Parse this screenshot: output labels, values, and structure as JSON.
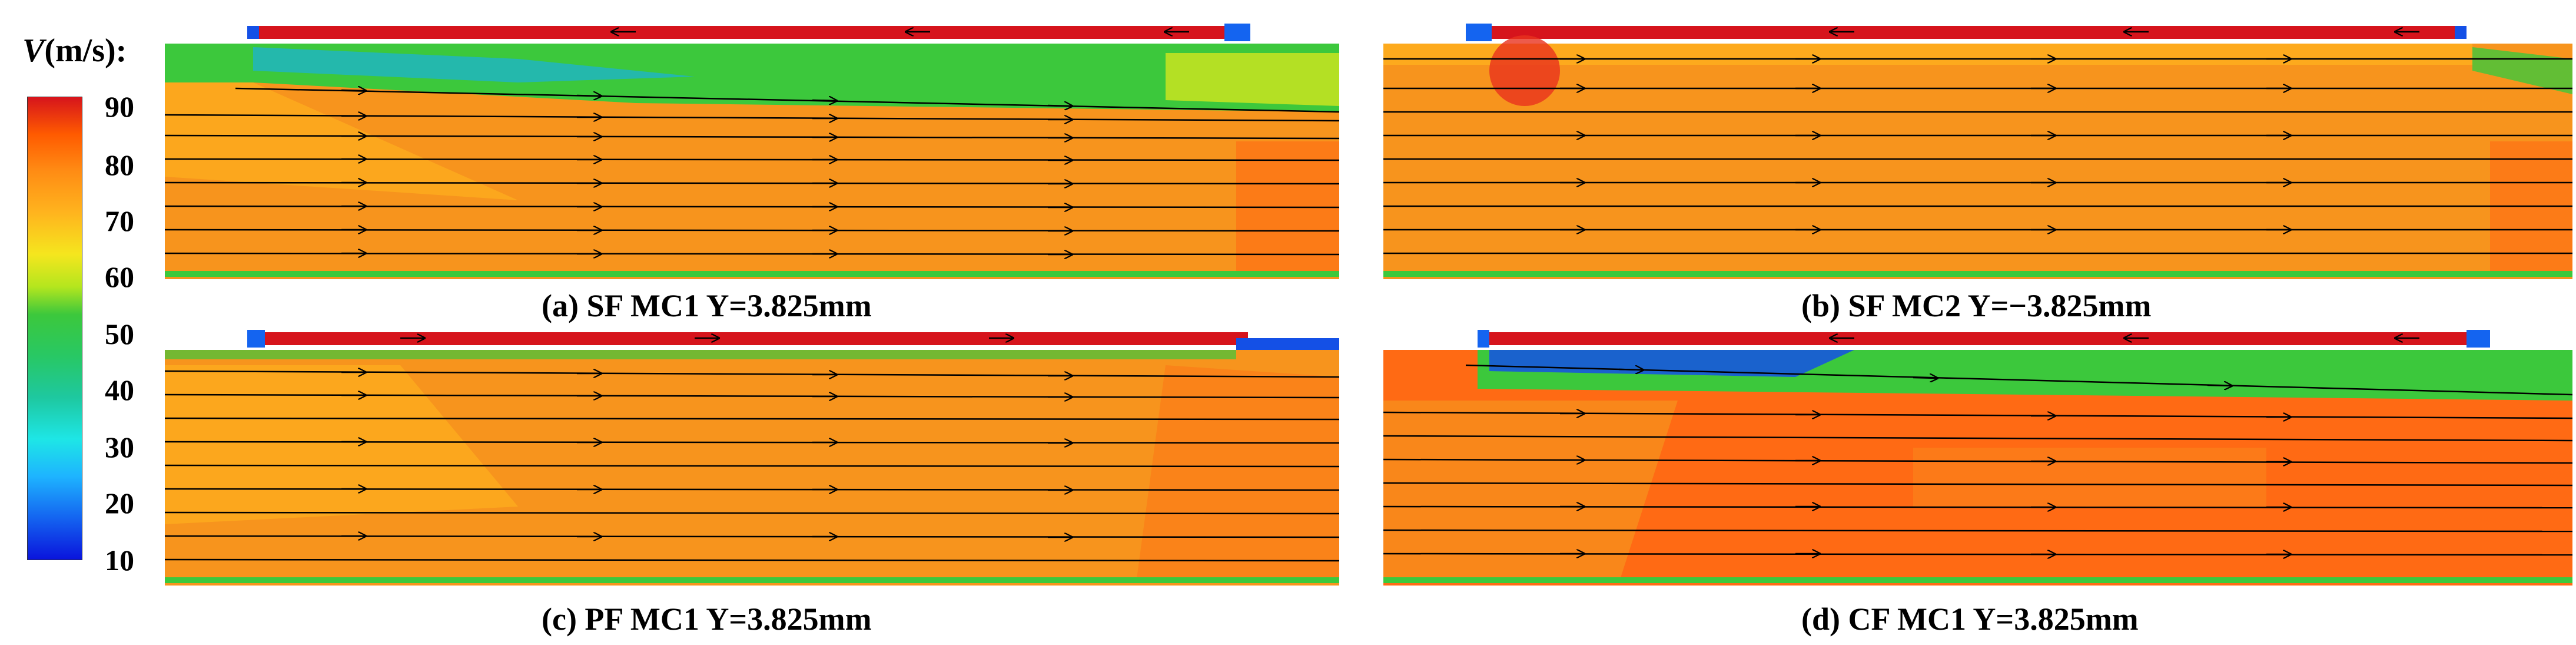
{
  "legend": {
    "variable": "V",
    "unit": "(m/s):",
    "ticks": [
      "90",
      "80",
      "70",
      "60",
      "50",
      "40",
      "30",
      "20",
      "10"
    ]
  },
  "panels": [
    {
      "id": "a",
      "label": "(a) SF MC1  Y=3.825mm"
    },
    {
      "id": "b",
      "label": "(b) SF MC2  Y=−3.825mm"
    },
    {
      "id": "c",
      "label": "(c) PF MC1  Y=3.825mm"
    },
    {
      "id": "d",
      "label": "(d) CF MC1  Y=3.825mm"
    }
  ],
  "colors": {
    "high": "#d6141c",
    "orange": "#f7941d",
    "green": "#4cc84c",
    "blue": "#1450e6"
  }
}
